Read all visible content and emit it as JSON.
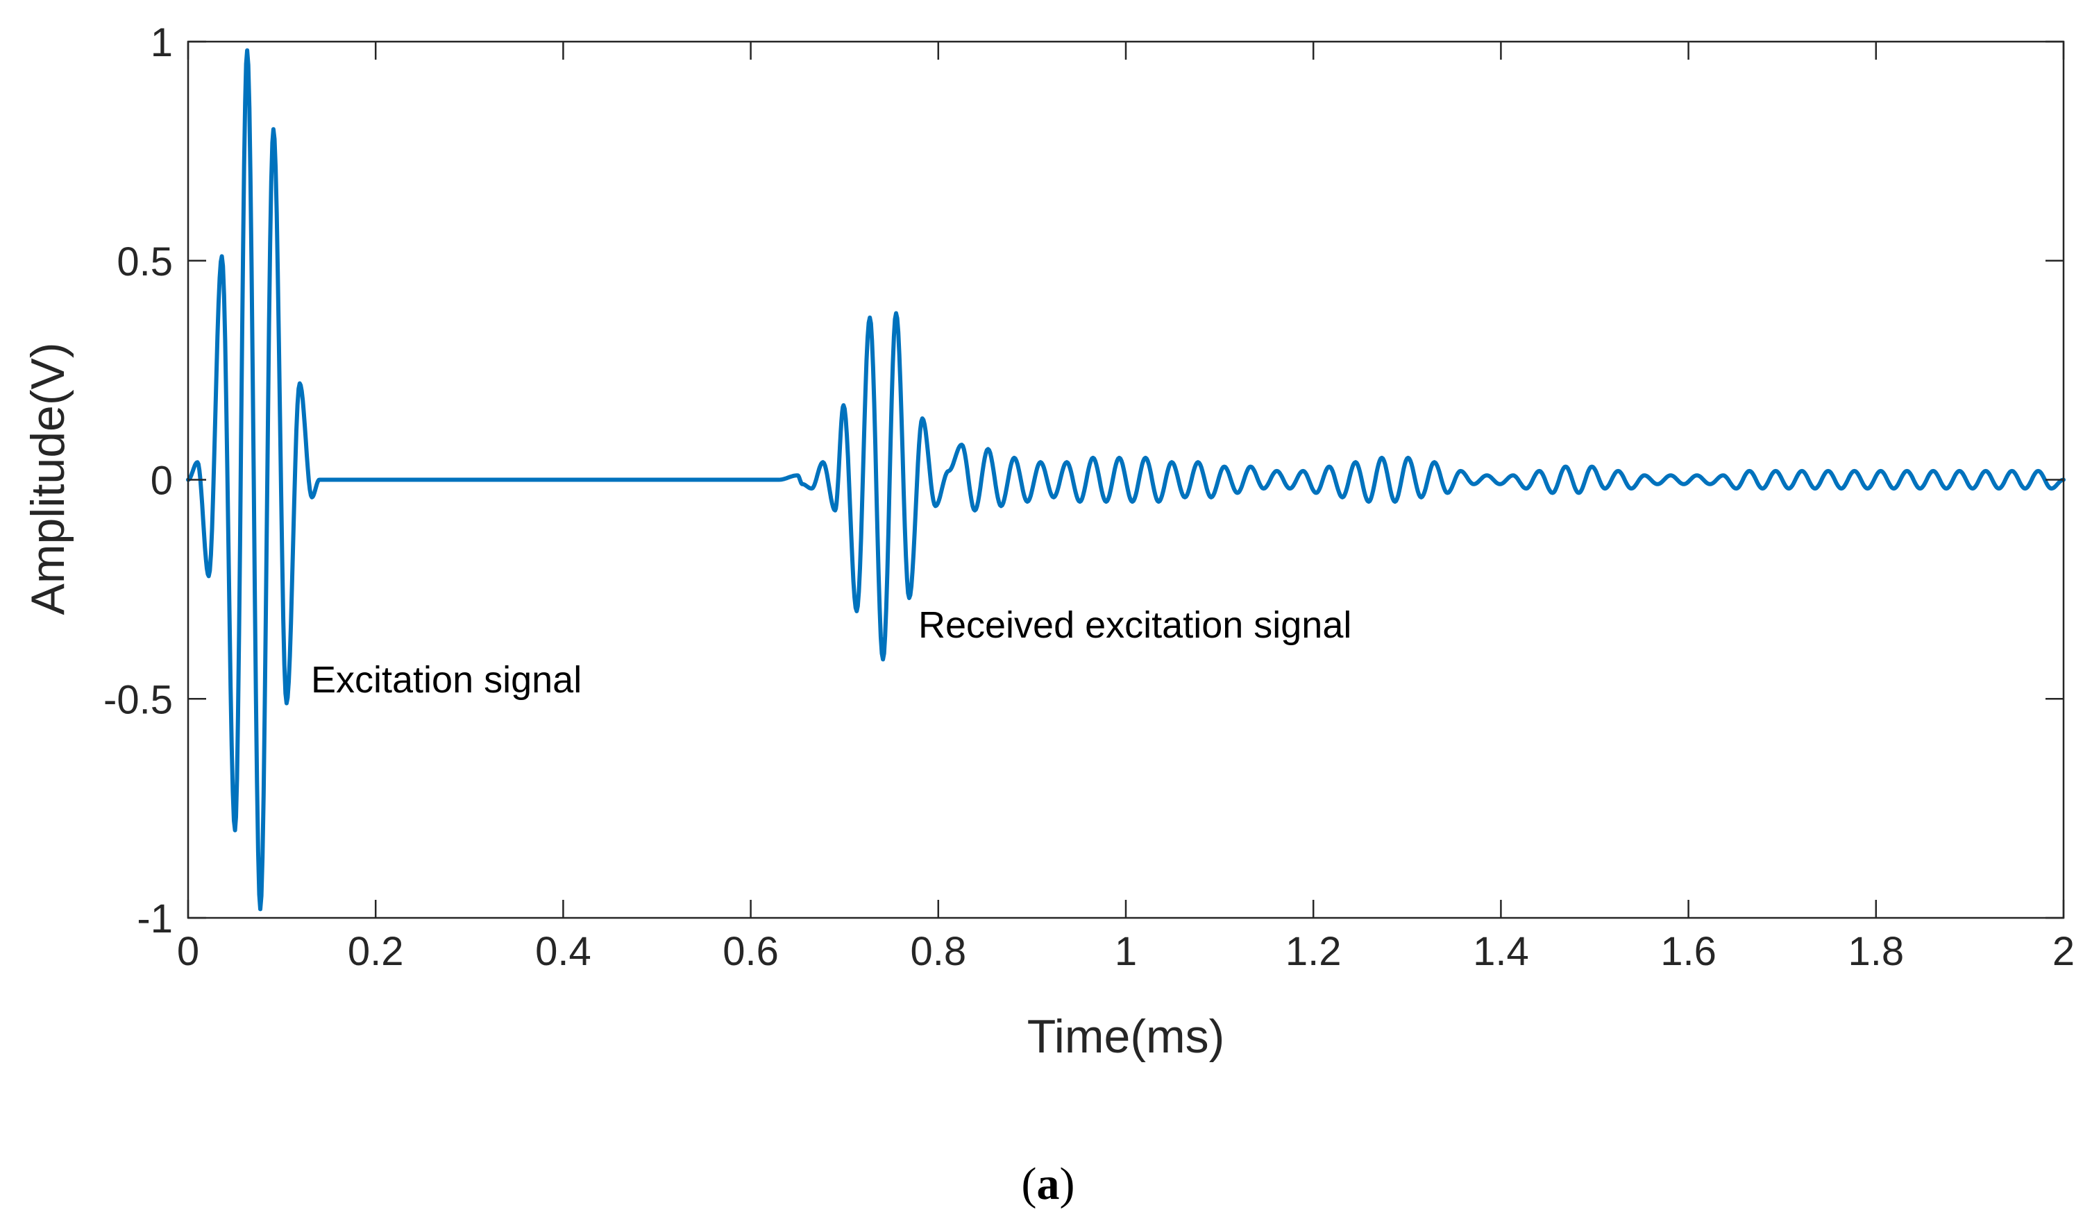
{
  "chart_data": {
    "type": "line",
    "title": "",
    "xlabel": "Time(ms)",
    "ylabel": "Amplitude(V)",
    "xlim": [
      0,
      2
    ],
    "ylim": [
      -1,
      1
    ],
    "xticks": [
      0,
      0.2,
      0.4,
      0.6,
      0.8,
      1,
      1.2,
      1.4,
      1.6,
      1.8,
      2
    ],
    "xtick_labels": [
      "0",
      "0.2",
      "0.4",
      "0.6",
      "0.8",
      "1",
      "1.2",
      "1.4",
      "1.6",
      "1.8",
      "2"
    ],
    "yticks": [
      -1,
      -0.5,
      0,
      0.5,
      1
    ],
    "ytick_labels": [
      "-1",
      "-0.5",
      "0",
      "0.5",
      "1"
    ],
    "grid": false,
    "color": "#0072bd",
    "series": [
      {
        "name": "signal",
        "description": "peak points of the plotted waveform (time ms, amplitude V)",
        "x": [
          0,
          0.01,
          0.022,
          0.036,
          0.05,
          0.063,
          0.077,
          0.091,
          0.105,
          0.119,
          0.132,
          0.14,
          0.3,
          0.5,
          0.63,
          0.65,
          0.655,
          0.665,
          0.677,
          0.69,
          0.699,
          0.713,
          0.727,
          0.741,
          0.755,
          0.769,
          0.783,
          0.797,
          0.811,
          0.825,
          0.839,
          0.853,
          0.867,
          0.881,
          0.895,
          0.909,
          0.923,
          0.937,
          0.951,
          0.965,
          0.979,
          0.993,
          1.007,
          1.021,
          1.035,
          1.049,
          1.063,
          1.077,
          1.091,
          1.105,
          1.119,
          1.133,
          1.147,
          1.161,
          1.175,
          1.189,
          1.203,
          1.217,
          1.231,
          1.245,
          1.259,
          1.273,
          1.287,
          1.301,
          1.315,
          1.329,
          1.343,
          1.357,
          1.371,
          1.385,
          1.399,
          1.413,
          1.427,
          1.441,
          1.455,
          1.469,
          1.483,
          1.497,
          1.511,
          1.525,
          1.539,
          1.553,
          1.567,
          1.581,
          1.595,
          1.609,
          1.623,
          1.637,
          1.651,
          1.665,
          1.679,
          1.693,
          1.707,
          1.721,
          1.735,
          1.749,
          1.763,
          1.777,
          1.791,
          1.805,
          1.819,
          1.833,
          1.847,
          1.861,
          1.875,
          1.889,
          1.903,
          1.917,
          1.931,
          1.945,
          1.959,
          1.973,
          1.987,
          2.0
        ],
        "y": [
          0,
          0.04,
          -0.22,
          0.51,
          -0.8,
          0.98,
          -0.98,
          0.8,
          -0.51,
          0.22,
          -0.04,
          0,
          0,
          0,
          0,
          0.01,
          -0.01,
          -0.02,
          0.04,
          -0.07,
          0.17,
          -0.3,
          0.37,
          -0.41,
          0.38,
          -0.27,
          0.14,
          -0.06,
          0.02,
          0.08,
          -0.07,
          0.07,
          -0.06,
          0.05,
          -0.05,
          0.04,
          -0.04,
          0.04,
          -0.05,
          0.05,
          -0.05,
          0.05,
          -0.05,
          0.05,
          -0.05,
          0.04,
          -0.04,
          0.04,
          -0.04,
          0.03,
          -0.03,
          0.03,
          -0.02,
          0.02,
          -0.02,
          0.02,
          -0.03,
          0.03,
          -0.04,
          0.04,
          -0.05,
          0.05,
          -0.05,
          0.05,
          -0.04,
          0.04,
          -0.03,
          0.02,
          -0.01,
          0.01,
          -0.01,
          0.01,
          -0.02,
          0.02,
          -0.03,
          0.03,
          -0.03,
          0.03,
          -0.02,
          0.02,
          -0.02,
          0.01,
          -0.01,
          0.01,
          -0.01,
          0.01,
          -0.01,
          0.01,
          -0.02,
          0.02,
          -0.02,
          0.02,
          -0.02,
          0.02,
          -0.02,
          0.02,
          -0.02,
          0.02,
          -0.02,
          0.02,
          -0.02,
          0.02,
          -0.02,
          0.02,
          -0.02,
          0.02,
          -0.02,
          0.02,
          -0.02,
          0.02,
          -0.02,
          0.02,
          -0.02,
          0.0
        ]
      }
    ],
    "annotations": [
      {
        "text": "Excitation signal",
        "x": 0.13,
        "y": -0.46
      },
      {
        "text": "Received excitation signal",
        "x": 0.778,
        "y": -0.33
      }
    ]
  },
  "caption": {
    "open": "(",
    "letter": "a",
    "close": ")"
  }
}
